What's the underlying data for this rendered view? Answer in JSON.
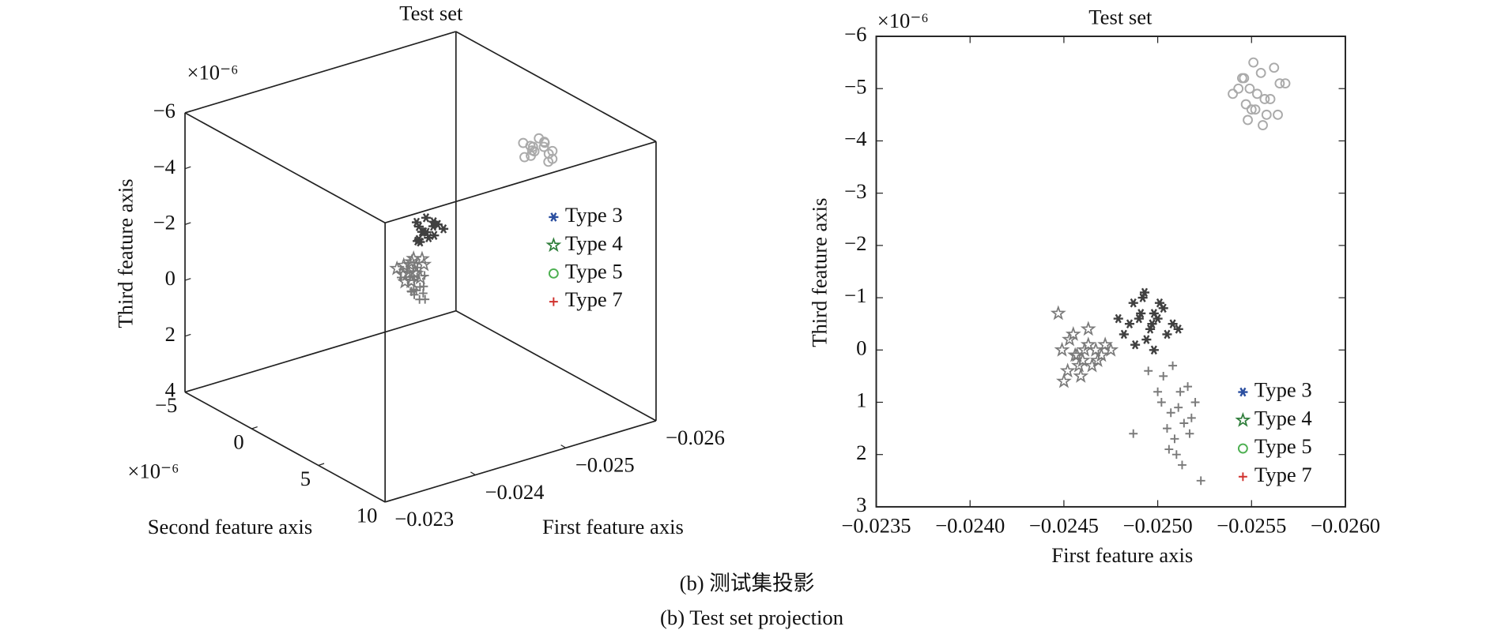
{
  "chart_data": [
    {
      "type": "scatter3d",
      "title": "Test set",
      "xlabel": "First feature axis",
      "ylabel": "Second feature axis",
      "zlabel": "Third feature axis",
      "yscale_label": "×10⁻⁶",
      "zscale_label": "×10⁻⁶",
      "xlim": [
        -0.023,
        -0.026
      ],
      "ylim": [
        -5,
        10
      ],
      "zlim": [
        -6,
        4
      ],
      "xticks": [
        {
          "value": -0.023,
          "label": "−0.023"
        },
        {
          "value": -0.024,
          "label": "−0.024"
        },
        {
          "value": -0.025,
          "label": "−0.025"
        },
        {
          "value": -0.026,
          "label": "−0.026"
        }
      ],
      "yticks": [
        {
          "value": -5,
          "label": "−5"
        },
        0,
        5,
        10
      ],
      "zticks": [
        {
          "value": -6,
          "label": "−6"
        },
        {
          "value": -4,
          "label": "−4"
        },
        {
          "value": -2,
          "label": "−2"
        },
        0,
        2,
        4
      ],
      "legend": "right",
      "series": [
        {
          "name": "Type 3",
          "marker": "asterisk",
          "color": "#2b4fa0",
          "point_color": "#404040",
          "x": [
            -0.02487,
            -0.02492,
            -0.02498,
            -0.02503,
            -0.02485,
            -0.0249,
            -0.02496,
            -0.02501,
            -0.02508,
            -0.02482,
            -0.02494,
            -0.025,
            -0.02488,
            -0.02505,
            -0.02493
          ],
          "y": [
            -0.3,
            0.1,
            -0.5,
            0.2,
            -0.1,
            0.4,
            -0.2,
            0.0,
            -0.4,
            0.3,
            -0.6,
            0.1,
            -0.2,
            0.5,
            -0.3
          ],
          "z": [
            -1.5,
            -1.2,
            -1.0,
            -1.4,
            -0.9,
            -1.1,
            -1.6,
            -1.3,
            -0.8,
            -1.0,
            -1.2,
            -1.5,
            -0.9,
            -1.3,
            -1.1
          ]
        },
        {
          "name": "Type 4",
          "marker": "star",
          "color": "#2e7d3a",
          "point_color": "#7a7a7a",
          "x": [
            -0.02449,
            -0.02453,
            -0.02456,
            -0.0246,
            -0.02463,
            -0.02467,
            -0.0247,
            -0.02452,
            -0.02458,
            -0.02465,
            -0.02472,
            -0.02455,
            -0.02461,
            -0.02468,
            -0.0245
          ],
          "y": [
            0.8,
            1.0,
            1.3,
            1.5,
            1.1,
            0.9,
            1.4,
            1.2,
            0.7,
            1.6,
            1.0,
            1.3,
            1.1,
            0.6,
            1.8
          ],
          "z": [
            -0.5,
            -0.3,
            -0.7,
            -0.4,
            -0.8,
            -0.2,
            -0.6,
            -0.1,
            -0.5,
            -0.9,
            0.0,
            -0.4,
            -0.7,
            0.2,
            -0.3
          ]
        },
        {
          "name": "Type 5",
          "marker": "circle",
          "color": "#4caf50",
          "point_color": "#aaaaaa",
          "x": [
            -0.0254,
            -0.02545,
            -0.0255,
            -0.02555,
            -0.0256,
            -0.02565,
            -0.02548,
            -0.02553,
            -0.02558,
            -0.02543,
            -0.02562,
            -0.02551,
            -0.02556,
            -0.02547,
            -0.02568
          ],
          "y": [
            4.2,
            4.5,
            4.0,
            4.7,
            4.3,
            4.6,
            4.1,
            4.4,
            4.8,
            3.9,
            4.5,
            4.2,
            4.6,
            4.3,
            4.4
          ],
          "z": [
            -4.5,
            -4.9,
            -4.4,
            -5.0,
            -4.7,
            -4.3,
            -4.8,
            -5.1,
            -4.6,
            -4.9,
            -4.2,
            -4.6,
            -5.0,
            -4.7,
            -4.5
          ]
        },
        {
          "name": "Type 7",
          "marker": "plus",
          "color": "#d0312d",
          "point_color": "#7a7a7a",
          "x": [
            -0.02495,
            -0.02503,
            -0.02508,
            -0.02512,
            -0.02516,
            -0.02502,
            -0.02507,
            -0.02511,
            -0.02518,
            -0.02505,
            -0.02509,
            -0.02514,
            -0.0252,
            -0.025,
            -0.02506
          ],
          "y": [
            -2.0,
            -1.6,
            -1.9,
            -1.5,
            -2.2,
            -1.7,
            -1.4,
            -2.1,
            -1.8,
            -1.3,
            -2.3,
            -1.6,
            -1.9,
            -1.2,
            -2.0
          ],
          "z": [
            1.0,
            1.4,
            1.2,
            1.6,
            0.9,
            1.5,
            1.3,
            1.8,
            1.1,
            1.7,
            1.2,
            1.4,
            2.0,
            1.3,
            1.6
          ]
        }
      ]
    },
    {
      "type": "scatter",
      "title": "Test set",
      "xlabel": "First feature axis",
      "ylabel": "Third feature axis",
      "yscale_label": "×10⁻⁶",
      "xlim": [
        -0.0235,
        -0.026
      ],
      "ylim": [
        -6,
        3
      ],
      "xticks": [
        {
          "value": -0.0235,
          "label": "−0.0235"
        },
        {
          "value": -0.024,
          "label": "−0.0240"
        },
        {
          "value": -0.0245,
          "label": "−0.0245"
        },
        {
          "value": -0.025,
          "label": "−0.0250"
        },
        {
          "value": -0.0255,
          "label": "−0.0255"
        },
        {
          "value": -0.026,
          "label": "−0.0260"
        }
      ],
      "yticks": [
        {
          "value": -6,
          "label": "−6"
        },
        {
          "value": -5,
          "label": "−5"
        },
        {
          "value": -4,
          "label": "−4"
        },
        {
          "value": -3,
          "label": "−3"
        },
        {
          "value": -2,
          "label": "−2"
        },
        {
          "value": -1,
          "label": "−1"
        },
        0,
        1,
        2,
        3
      ],
      "legend": "lower right",
      "series": [
        {
          "name": "Type 3",
          "marker": "asterisk",
          "color": "#2b4fa0",
          "point_color": "#404040",
          "x": [
            -0.02487,
            -0.02492,
            -0.02498,
            -0.02503,
            -0.02485,
            -0.0249,
            -0.02496,
            -0.02501,
            -0.02508,
            -0.02482,
            -0.02494,
            -0.025,
            -0.02488,
            -0.02505,
            -0.02493,
            -0.02498,
            -0.02479,
            -0.02511,
            -0.02491,
            -0.02497
          ],
          "y": [
            -0.9,
            -1.0,
            -0.7,
            -0.8,
            -0.5,
            -0.6,
            -0.4,
            -0.9,
            -0.5,
            -0.3,
            -0.2,
            -0.6,
            -0.1,
            -0.3,
            -1.1,
            0.0,
            -0.6,
            -0.4,
            -0.7,
            -0.5
          ]
        },
        {
          "name": "Type 4",
          "marker": "star",
          "color": "#2e7d3a",
          "point_color": "#7a7a7a",
          "x": [
            -0.02449,
            -0.02453,
            -0.02456,
            -0.0246,
            -0.02463,
            -0.02467,
            -0.0247,
            -0.02452,
            -0.02458,
            -0.02465,
            -0.02472,
            -0.02455,
            -0.02461,
            -0.02468,
            -0.0245,
            -0.02457,
            -0.02463,
            -0.02447,
            -0.02475,
            -0.02459
          ],
          "y": [
            0.0,
            -0.2,
            0.1,
            0.2,
            -0.1,
            0.0,
            0.1,
            0.4,
            0.3,
            0.3,
            -0.1,
            -0.3,
            0.0,
            0.2,
            0.6,
            0.1,
            -0.4,
            -0.7,
            0.0,
            0.5
          ]
        },
        {
          "name": "Type 5",
          "marker": "circle",
          "color": "#4caf50",
          "point_color": "#aaaaaa",
          "x": [
            -0.0254,
            -0.02545,
            -0.0255,
            -0.02555,
            -0.0256,
            -0.02565,
            -0.02548,
            -0.02553,
            -0.02558,
            -0.02543,
            -0.02562,
            -0.02551,
            -0.02556,
            -0.02547,
            -0.02568,
            -0.02549,
            -0.02557,
            -0.02552,
            -0.02564,
            -0.02546
          ],
          "y": [
            -4.9,
            -5.2,
            -4.6,
            -5.3,
            -4.8,
            -5.1,
            -4.4,
            -4.9,
            -4.5,
            -5.0,
            -5.4,
            -5.5,
            -4.3,
            -4.7,
            -5.1,
            -5.0,
            -4.8,
            -4.6,
            -4.5,
            -5.2
          ]
        },
        {
          "name": "Type 7",
          "marker": "plus",
          "color": "#d0312d",
          "point_color": "#7a7a7a",
          "x": [
            -0.02495,
            -0.02503,
            -0.02508,
            -0.02512,
            -0.02516,
            -0.02502,
            -0.02507,
            -0.02511,
            -0.02518,
            -0.02505,
            -0.02509,
            -0.02514,
            -0.0252,
            -0.025,
            -0.02506,
            -0.02513,
            -0.02487,
            -0.02523,
            -0.0251,
            -0.02517
          ],
          "y": [
            0.4,
            0.5,
            0.3,
            0.8,
            0.7,
            1.0,
            1.2,
            1.1,
            1.3,
            1.5,
            1.7,
            1.4,
            1.0,
            0.8,
            1.9,
            2.2,
            1.6,
            2.5,
            2.0,
            1.6
          ]
        }
      ]
    }
  ],
  "caption": {
    "zh": "(b) 测试集投影",
    "en": "(b) Test set projection"
  }
}
